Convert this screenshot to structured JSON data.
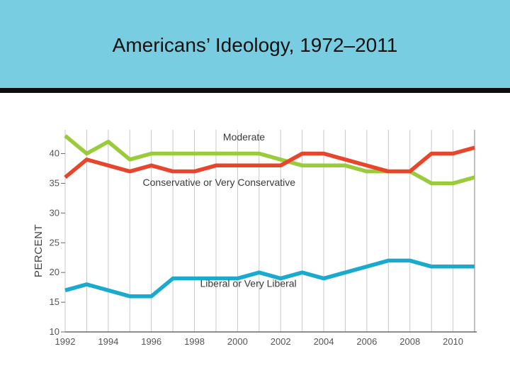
{
  "slide": {
    "title": "Americans’ Ideology, 1972–2011"
  },
  "chart_data": {
    "type": "line",
    "title": "Americans’ Ideology, 1972–2011",
    "xlabel": "",
    "ylabel": "PERCENT",
    "x": [
      1992,
      1993,
      1994,
      1995,
      1996,
      1997,
      1998,
      1999,
      2000,
      2001,
      2002,
      2003,
      2004,
      2005,
      2006,
      2007,
      2008,
      2009,
      2010,
      2011
    ],
    "xlim": [
      1992,
      2011
    ],
    "ylim": [
      10,
      44
    ],
    "x_ticks": [
      "1992",
      "1994",
      "1996",
      "1998",
      "2000",
      "2002",
      "2004",
      "2006",
      "2008",
      "2010"
    ],
    "y_ticks": [
      "10",
      "15",
      "20",
      "25",
      "30",
      "35",
      "40"
    ],
    "grid": "vertical",
    "series": [
      {
        "name": "Moderate",
        "color": "#9acb3b",
        "values": [
          43,
          40,
          42,
          39,
          40,
          40,
          40,
          40,
          40,
          40,
          39,
          38,
          38,
          38,
          37,
          37,
          37,
          35,
          35,
          36
        ]
      },
      {
        "name": "Conservative or Very Conservative",
        "color": "#e8452c",
        "values": [
          36,
          39,
          38,
          37,
          38,
          37,
          37,
          38,
          38,
          38,
          38,
          40,
          40,
          39,
          38,
          37,
          37,
          40,
          40,
          41
        ]
      },
      {
        "name": "Liberal or Very Liberal",
        "color": "#1aaad0",
        "values": [
          17,
          18,
          17,
          16,
          16,
          19,
          19,
          19,
          19,
          20,
          19,
          20,
          19,
          20,
          21,
          22,
          22,
          21,
          21,
          21
        ]
      }
    ]
  }
}
